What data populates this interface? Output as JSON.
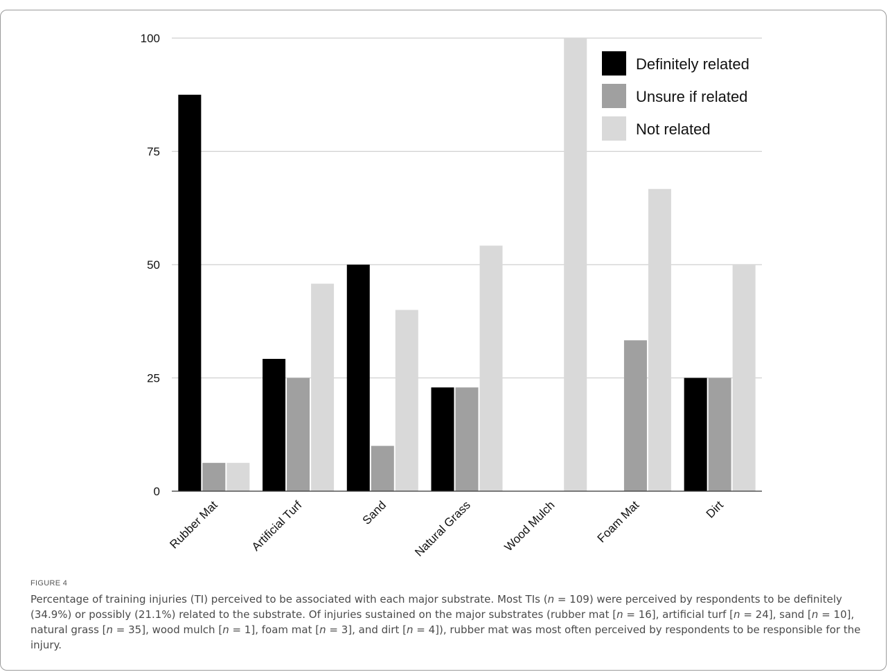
{
  "figure": {
    "label": "FIGURE 4",
    "caption_parts": [
      "Percentage of training injuries (TI) perceived to be associated with each major substrate. Most TIs (",
      "n",
      " = 109) were perceived by respondents to be definitely (34.9%) or possibly (21.1%) related to the substrate. Of injuries sustained on the major substrates (rubber mat [",
      "n",
      " = 16], artificial turf [",
      "n",
      " = 24], sand [",
      "n",
      " = 10], natural grass [",
      "n",
      " = 35], wood mulch [",
      "n",
      " = 1], foam mat [",
      "n",
      " = 3], and dirt [",
      "n",
      " = 4]), rubber mat was most often perceived by respondents to be responsible for the injury."
    ]
  },
  "chart_data": {
    "type": "bar",
    "categories": [
      "Rubber Mat",
      "Artificial Turf",
      "Sand",
      "Natural Grass",
      "Wood Mulch",
      "Foam Mat",
      "Dirt"
    ],
    "series": [
      {
        "name": "Definitely related",
        "color": "#000000",
        "values": [
          87.5,
          29.2,
          50,
          22.9,
          0,
          0,
          25
        ]
      },
      {
        "name": "Unsure if related",
        "color": "#a0a0a0",
        "values": [
          6.25,
          25,
          10,
          22.9,
          0,
          33.3,
          25
        ]
      },
      {
        "name": "Not related",
        "color": "#d9d9d9",
        "values": [
          6.25,
          45.8,
          40,
          54.2,
          100,
          66.7,
          50
        ]
      }
    ],
    "yticks": [
      0,
      25,
      50,
      75,
      100
    ],
    "ylim": [
      0,
      100
    ],
    "grid": true,
    "legend_position": "top-right",
    "title": "",
    "xlabel": "",
    "ylabel": ""
  }
}
